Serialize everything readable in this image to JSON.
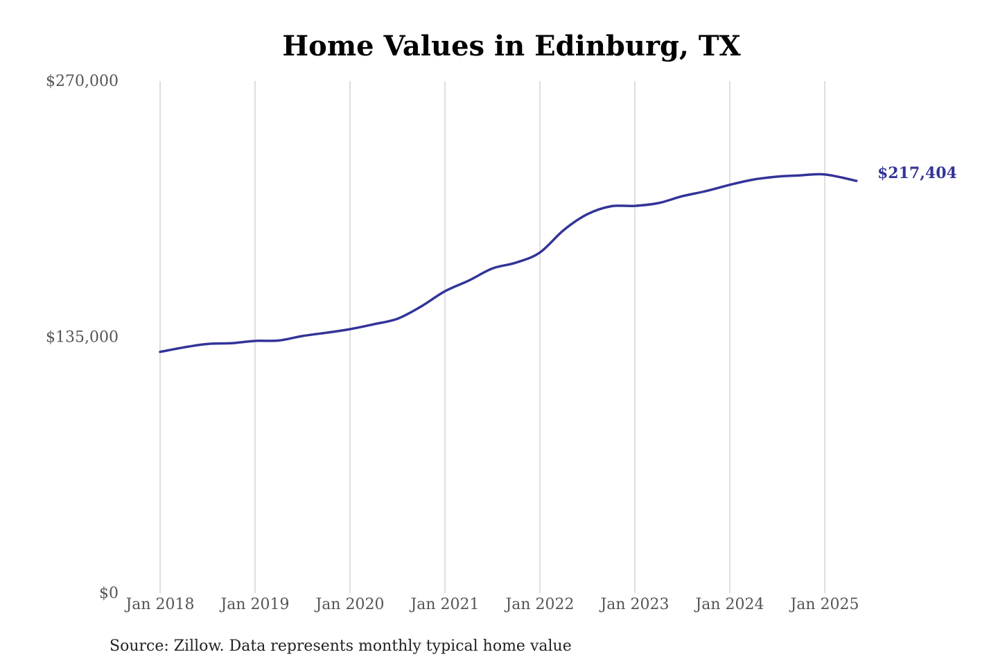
{
  "chart_data": {
    "type": "line",
    "title": "Home Values in Edinburg, TX",
    "xlabel": "",
    "ylabel": "",
    "source": "Source: Zillow. Data represents monthly typical home value",
    "x_ticks": [
      "Jan 2018",
      "Jan 2019",
      "Jan 2020",
      "Jan 2021",
      "Jan 2022",
      "Jan 2023",
      "Jan 2024",
      "Jan 2025"
    ],
    "y_ticks": [
      "$0",
      "$135,000",
      "$270,000"
    ],
    "ylim": [
      0,
      270000
    ],
    "xlim": [
      "2018-01",
      "2025-05"
    ],
    "grid": "vertical",
    "line_color": "#333399",
    "end_label": "$217,404",
    "series": [
      {
        "x": [
          "2018-01",
          "2018-04",
          "2018-07",
          "2018-10",
          "2019-01",
          "2019-04",
          "2019-07",
          "2019-10",
          "2020-01",
          "2020-04",
          "2020-07",
          "2020-10",
          "2021-01",
          "2021-04",
          "2021-07",
          "2021-10",
          "2022-01",
          "2022-04",
          "2022-07",
          "2022-10",
          "2023-01",
          "2023-04",
          "2023-07",
          "2023-10",
          "2024-01",
          "2024-04",
          "2024-07",
          "2024-10",
          "2025-01",
          "2025-05"
        ],
        "values": [
          127200,
          129600,
          131400,
          131800,
          133000,
          133200,
          135600,
          137300,
          139200,
          141800,
          144700,
          151200,
          159200,
          164800,
          171200,
          174300,
          179600,
          191400,
          199800,
          204000,
          204200,
          205700,
          209300,
          212000,
          215300,
          218100,
          219600,
          220300,
          220800,
          217404
        ]
      }
    ]
  }
}
